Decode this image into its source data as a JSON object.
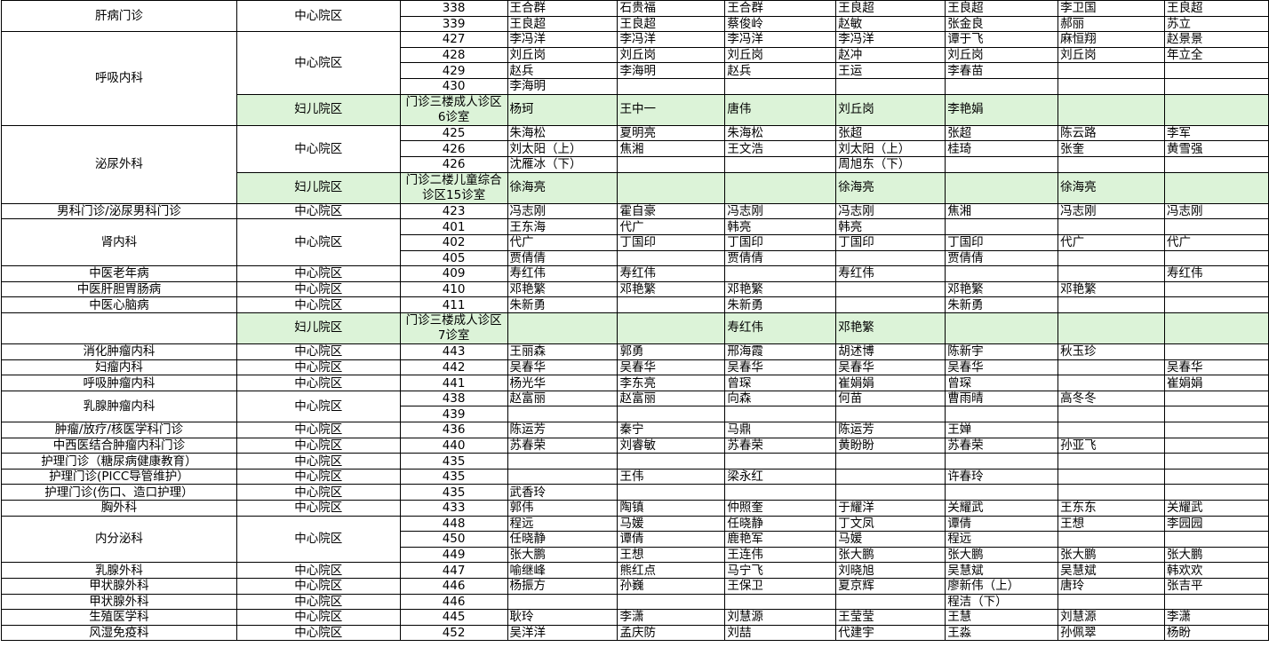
{
  "colors": {
    "campus_highlight": "#dcf3d8",
    "grid": "#000000"
  },
  "groups": [
    {
      "dept": "肝病门诊",
      "campuses": [
        {
          "campus": "中心院区",
          "green": false,
          "rooms": [
            {
              "room": "338",
              "doctors": [
                "王合群",
                "石贵福",
                "王合群",
                "王良超",
                "王良超",
                "李卫国",
                "王良超"
              ]
            },
            {
              "room": "339",
              "doctors": [
                "王良超",
                "王良超",
                "蔡俊岭",
                "赵敏",
                "张金良",
                "郝丽",
                "苏立"
              ]
            }
          ]
        }
      ]
    },
    {
      "dept": "呼吸内科",
      "campuses": [
        {
          "campus": "中心院区",
          "green": false,
          "rooms": [
            {
              "room": "427",
              "doctors": [
                "李冯洋",
                "李冯洋",
                "李冯洋",
                "李冯洋",
                "谭于飞",
                "麻恒翔",
                "赵景景"
              ]
            },
            {
              "room": "428",
              "doctors": [
                "刘丘岗",
                "刘丘岗",
                "刘丘岗",
                "赵冲",
                "刘丘岗",
                "刘丘岗",
                "年立全"
              ]
            },
            {
              "room": "429",
              "doctors": [
                "赵兵",
                "李海明",
                "赵兵",
                "王运",
                "李春苗",
                "",
                ""
              ]
            },
            {
              "room": "430",
              "doctors": [
                "李海明",
                "",
                "",
                "",
                "",
                "",
                ""
              ]
            }
          ]
        },
        {
          "campus": "妇儿院区",
          "green": true,
          "rooms": [
            {
              "room": "门诊三楼成人诊区6诊室",
              "doctors": [
                "杨珂",
                "王中一",
                "唐伟",
                "刘丘岗",
                "李艳娟",
                "",
                ""
              ]
            }
          ]
        }
      ]
    },
    {
      "dept": "泌尿外科",
      "campuses": [
        {
          "campus": "中心院区",
          "green": false,
          "rooms": [
            {
              "room": "425",
              "doctors": [
                "朱海松",
                "夏明亮",
                "朱海松",
                "张超",
                "张超",
                "陈云路",
                "李军"
              ]
            },
            {
              "room": "426",
              "doctors": [
                "刘太阳（上）",
                "焦湘",
                "王文浩",
                "刘太阳（上）",
                "桂琦",
                "张奎",
                "黄雪强"
              ]
            },
            {
              "room": "426",
              "doctors": [
                "沈雁冰（下）",
                "",
                "",
                "周旭东（下）",
                "",
                "",
                ""
              ]
            }
          ]
        },
        {
          "campus": "妇儿院区",
          "green": true,
          "rooms": [
            {
              "room": "门诊二楼儿童综合诊区15诊室",
              "doctors": [
                "徐海亮",
                "",
                "",
                "徐海亮",
                "",
                "徐海亮",
                ""
              ]
            }
          ]
        }
      ]
    },
    {
      "dept": "男科门诊/泌尿男科门诊",
      "campuses": [
        {
          "campus": "中心院区",
          "green": false,
          "rooms": [
            {
              "room": "423",
              "doctors": [
                "冯志刚",
                "霍自豪",
                "冯志刚",
                "冯志刚",
                "焦湘",
                "冯志刚",
                "冯志刚"
              ]
            }
          ]
        }
      ]
    },
    {
      "dept": "肾内科",
      "campuses": [
        {
          "campus": "中心院区",
          "green": false,
          "rooms": [
            {
              "room": "401",
              "doctors": [
                "王东海",
                "代广",
                "韩亮",
                "韩亮",
                "",
                "",
                ""
              ]
            },
            {
              "room": "402",
              "doctors": [
                "代广",
                "丁国印",
                "丁国印",
                "丁国印",
                "丁国印",
                "代广",
                "代广"
              ]
            },
            {
              "room": "405",
              "doctors": [
                "贾倩倩",
                "",
                "贾倩倩",
                "",
                "贾倩倩",
                "",
                ""
              ]
            }
          ]
        }
      ]
    },
    {
      "dept": "中医老年病",
      "campuses": [
        {
          "campus": "中心院区",
          "green": false,
          "rooms": [
            {
              "room": "409",
              "doctors": [
                "寿红伟",
                "寿红伟",
                "",
                "寿红伟",
                "",
                "",
                "寿红伟"
              ]
            }
          ]
        }
      ]
    },
    {
      "dept": "中医肝胆胃肠病",
      "campuses": [
        {
          "campus": "中心院区",
          "green": false,
          "rooms": [
            {
              "room": "410",
              "doctors": [
                "邓艳繁",
                "邓艳繁",
                "邓艳繁",
                "",
                "邓艳繁",
                "邓艳繁",
                ""
              ]
            }
          ]
        }
      ]
    },
    {
      "dept": "中医心脑病",
      "campuses": [
        {
          "campus": "中心院区",
          "green": false,
          "rooms": [
            {
              "room": "411",
              "doctors": [
                "朱新勇",
                "",
                "朱新勇",
                "",
                "朱新勇",
                "",
                ""
              ]
            }
          ]
        }
      ]
    },
    {
      "dept": "",
      "campuses": [
        {
          "campus": "妇儿院区",
          "green": true,
          "rooms": [
            {
              "room": "门诊三楼成人诊区7诊室",
              "doctors": [
                "",
                "",
                "寿红伟",
                "邓艳繁",
                "",
                "",
                ""
              ]
            }
          ]
        }
      ]
    },
    {
      "dept": "消化肿瘤内科",
      "campuses": [
        {
          "campus": "中心院区",
          "green": false,
          "rooms": [
            {
              "room": "443",
              "doctors": [
                "王丽森",
                "郭勇",
                "邢海霞",
                "胡述博",
                "陈新宇",
                "秋玉珍",
                ""
              ]
            }
          ]
        }
      ]
    },
    {
      "dept": "妇瘤内科",
      "campuses": [
        {
          "campus": "中心院区",
          "green": false,
          "rooms": [
            {
              "room": "442",
              "doctors": [
                "吴春华",
                "吴春华",
                "吴春华",
                "吴春华",
                "吴春华",
                "",
                "吴春华"
              ]
            }
          ]
        }
      ]
    },
    {
      "dept": "呼吸肿瘤内科",
      "campuses": [
        {
          "campus": "中心院区",
          "green": false,
          "rooms": [
            {
              "room": "441",
              "doctors": [
                "杨光华",
                "李东亮",
                "曾琛",
                "崔娟娟",
                "曾琛",
                "",
                "崔娟娟"
              ]
            }
          ]
        }
      ]
    },
    {
      "dept": "乳腺肿瘤内科",
      "campuses": [
        {
          "campus": "中心院区",
          "green": false,
          "rooms": [
            {
              "room": "438",
              "doctors": [
                "赵富丽",
                "赵富丽",
                "向森",
                "何苗",
                "曹雨晴",
                "高冬冬",
                ""
              ]
            },
            {
              "room": "439",
              "doctors": [
                "",
                "",
                "",
                "",
                "",
                "",
                ""
              ]
            }
          ]
        }
      ]
    },
    {
      "dept": "肿瘤/放疗/核医学科门诊",
      "campuses": [
        {
          "campus": "中心院区",
          "green": false,
          "rooms": [
            {
              "room": "436",
              "doctors": [
                "陈运芳",
                "秦宁",
                "马鼎",
                "陈运芳",
                "王婵",
                "",
                ""
              ]
            }
          ]
        }
      ]
    },
    {
      "dept": "中西医结合肿瘤内科门诊",
      "campuses": [
        {
          "campus": "中心院区",
          "green": false,
          "rooms": [
            {
              "room": "440",
              "doctors": [
                "苏春荣",
                "刘睿敏",
                "苏春荣",
                "黄盼盼",
                "苏春荣",
                "孙亚飞",
                ""
              ]
            }
          ]
        }
      ]
    },
    {
      "dept": "护理门诊（糖尿病健康教育）",
      "campuses": [
        {
          "campus": "中心院区",
          "green": false,
          "rooms": [
            {
              "room": "435",
              "doctors": [
                "",
                "",
                "",
                "",
                "",
                "",
                ""
              ]
            }
          ]
        }
      ]
    },
    {
      "dept": "护理门诊(PICC导管维护）",
      "campuses": [
        {
          "campus": "中心院区",
          "green": false,
          "rooms": [
            {
              "room": "435",
              "doctors": [
                "",
                "王伟",
                "梁永红",
                "",
                "许春玲",
                "",
                ""
              ]
            }
          ]
        }
      ]
    },
    {
      "dept": "护理门诊(伤口、造口护理）",
      "campuses": [
        {
          "campus": "中心院区",
          "green": false,
          "rooms": [
            {
              "room": "435",
              "doctors": [
                "武香玲",
                "",
                "",
                "",
                "",
                "",
                ""
              ]
            }
          ]
        }
      ]
    },
    {
      "dept": "胸外科",
      "campuses": [
        {
          "campus": "中心院区",
          "green": false,
          "rooms": [
            {
              "room": "433",
              "doctors": [
                "郭伟",
                "陶镇",
                "仲照奎",
                "于耀洋",
                "关耀武",
                "王东东",
                "关耀武"
              ]
            }
          ]
        }
      ]
    },
    {
      "dept": "内分泌科",
      "campuses": [
        {
          "campus": "中心院区",
          "green": false,
          "rooms": [
            {
              "room": "448",
              "doctors": [
                "程远",
                "马媛",
                "任晓静",
                "丁文凤",
                "谭倩",
                "王想",
                "李园园"
              ]
            },
            {
              "room": "450",
              "doctors": [
                "任晓静",
                "谭倩",
                "鹿艳军",
                "马媛",
                "程远",
                "",
                ""
              ]
            },
            {
              "room": "449",
              "doctors": [
                "张大鹏",
                "王想",
                "王连伟",
                "张大鹏",
                "张大鹏",
                "张大鹏",
                "张大鹏"
              ]
            }
          ]
        }
      ]
    },
    {
      "dept": "乳腺外科",
      "campuses": [
        {
          "campus": "中心院区",
          "green": false,
          "rooms": [
            {
              "room": "447",
              "doctors": [
                "喻继峰",
                "熊红点",
                "马宁飞",
                "刘晓旭",
                "吴慧斌",
                "吴慧斌",
                "韩欢欢"
              ]
            }
          ]
        }
      ]
    },
    {
      "dept": "甲状腺外科",
      "campuses": [
        {
          "campus": "中心院区",
          "green": false,
          "rooms": [
            {
              "room": "446",
              "doctors": [
                "杨振方",
                "孙巍",
                "王保卫",
                "夏京辉",
                "廖新伟（上）",
                "唐玲",
                "张吉平"
              ]
            }
          ]
        }
      ]
    },
    {
      "dept": "甲状腺外科",
      "campuses": [
        {
          "campus": "中心院区",
          "green": false,
          "rooms": [
            {
              "room": "446",
              "doctors": [
                "",
                "",
                "",
                "",
                "程洁（下）",
                "",
                ""
              ]
            }
          ]
        }
      ]
    },
    {
      "dept": "生殖医学科",
      "campuses": [
        {
          "campus": "中心院区",
          "green": false,
          "rooms": [
            {
              "room": "445",
              "doctors": [
                "耿玲",
                "李潇",
                "刘慧源",
                "王莹莹",
                "王慧",
                "刘慧源",
                "李潇"
              ]
            }
          ]
        }
      ]
    },
    {
      "dept": "风湿免疫科",
      "campuses": [
        {
          "campus": "中心院区",
          "green": false,
          "rooms": [
            {
              "room": "452",
              "doctors": [
                "吴洋洋",
                "孟庆防",
                "刘喆",
                "代建宇",
                "王淼",
                "孙佩翠",
                "杨盼"
              ]
            }
          ]
        }
      ]
    }
  ]
}
